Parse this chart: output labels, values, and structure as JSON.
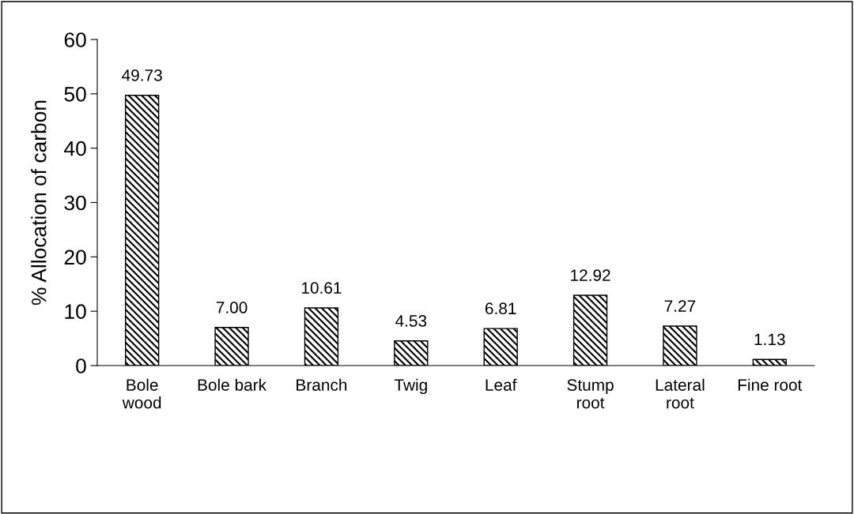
{
  "chart_data": {
    "type": "bar",
    "ylabel": "% Allocation of carbon",
    "categories": [
      "Bole\nwood",
      "Bole bark",
      "Branch",
      "Twig",
      "Leaf",
      "Stump\nroot",
      "Lateral\nroot",
      "Fine root"
    ],
    "values": [
      49.73,
      7.0,
      10.61,
      4.53,
      6.81,
      12.92,
      7.27,
      1.13
    ],
    "value_labels": [
      "49.73",
      "7.00",
      "10.61",
      "4.53",
      "6.81",
      "12.92",
      "7.27",
      "1.13"
    ],
    "color": "#000000",
    "ylim": [
      0,
      60
    ],
    "yticks": [
      0,
      10,
      20,
      30,
      40,
      50,
      60
    ],
    "grid": false
  }
}
